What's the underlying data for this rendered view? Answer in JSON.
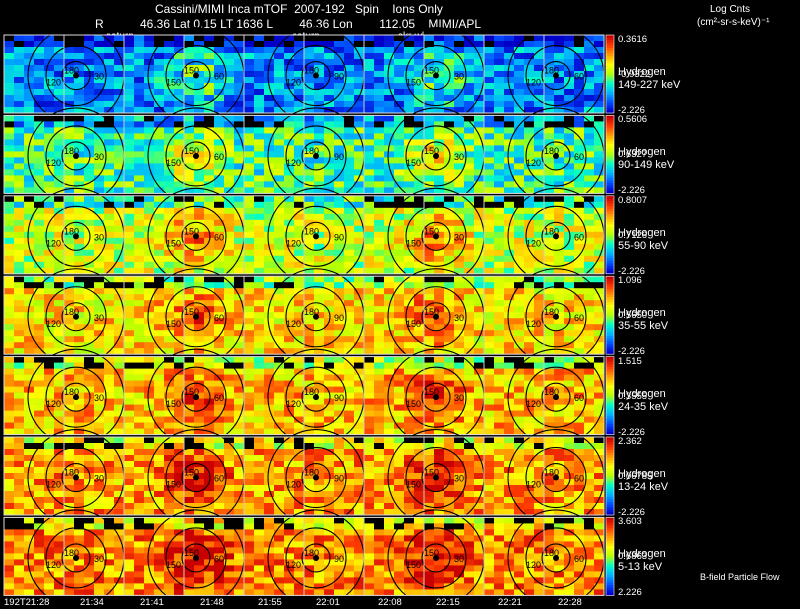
{
  "header": {
    "line1": "Cassini/MIMI Inca mTOF  2007-192   Spin    Ions Only",
    "r_label": "R",
    "line2": "46.36 Lat 0.15 LT 1636 L        46.36 Lon        112.05    MIMI/APL",
    "units_title": "Log Cnts",
    "units": "(cm²-sr-s-keV)⁻¹"
  },
  "overlay_labels": [
    "saturn",
    "saturn",
    "skr-wl"
  ],
  "footer_note": "B-field Particle Flow",
  "colors": {
    "background": "#000000",
    "grid": "#cccccc",
    "contour": "#000000",
    "colormap": [
      "#0000c8",
      "#0050ff",
      "#00b4ff",
      "#00ffc8",
      "#b4ff00",
      "#ffff00",
      "#ffa000",
      "#ff3c00",
      "#c80000"
    ]
  },
  "chart_data": {
    "type": "heatmap",
    "title": "Cassini/MIMI Inca mTOF  2007-192   Spin    Ions Only",
    "x_tick_labels": [
      "192T21:28",
      "21:34",
      "21:41",
      "21:48",
      "21:55",
      "22:01",
      "22:08",
      "22:15",
      "22:21",
      "22:28"
    ],
    "contour_labels": [
      "30",
      "60",
      "90",
      "120",
      "150",
      "180"
    ],
    "panels": [
      {
        "species": "Hydrogen",
        "energy": "149-227 keV",
        "cmax": "0.3616",
        "cmid": "-0.9322",
        "cmin": "-2.226",
        "level": 0.2
      },
      {
        "species": "Hydrogen",
        "energy": "90-149 keV",
        "cmax": "0.5606",
        "cmid": "0.6327",
        "cmin": "-2.226",
        "level": 0.4
      },
      {
        "species": "Hydrogen",
        "energy": "55-90 keV",
        "cmax": "0.8007",
        "cmid": "0.7126",
        "cmin": "-2.226",
        "level": 0.55
      },
      {
        "species": "Hydrogen",
        "energy": "35-55 keV",
        "cmax": "1.096",
        "cmid": "0.5650",
        "cmin": "-2.226",
        "level": 0.65
      },
      {
        "species": "Hydrogen",
        "energy": "24-35 keV",
        "cmax": "1.515",
        "cmid": "0.3555",
        "cmin": "-2.226",
        "level": 0.7
      },
      {
        "species": "Hydrogen",
        "energy": "13-24 keV",
        "cmax": "2.362",
        "cmid": "0.06785",
        "cmin": "-2.226",
        "level": 0.75
      },
      {
        "species": "Hydrogen",
        "energy": "5-13 keV",
        "cmax": "3.603",
        "cmid": "0.6863",
        "cmin": "2.226",
        "level": 0.78
      }
    ]
  }
}
